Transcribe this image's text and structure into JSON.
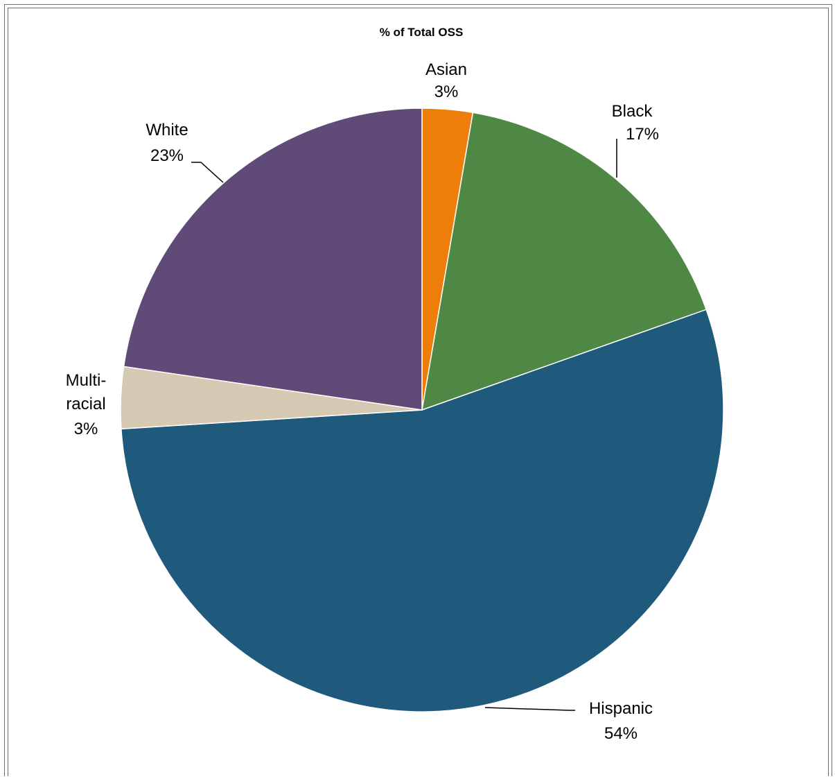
{
  "chart_data": {
    "type": "pie",
    "title": "% of Total OSS",
    "slices": [
      {
        "name": "Asian",
        "pct_label": "3%",
        "value": 2.7,
        "color": "#ef7d0a"
      },
      {
        "name": "Black",
        "pct_label": "17%",
        "value": 16.9,
        "color": "#4f8744"
      },
      {
        "name": "Hispanic",
        "pct_label": "54%",
        "value": 54.4,
        "color": "#1f5a7c"
      },
      {
        "name": "Multi-racial",
        "label_lines": [
          "Multi-",
          "racial"
        ],
        "pct_label": "3%",
        "value": 3.3,
        "color": "#d5c9b3"
      },
      {
        "name": "White",
        "pct_label": "23%",
        "value": 22.7,
        "color": "#604a78"
      }
    ],
    "start_angle": "12 o'clock, clockwise",
    "legend": "none (labels on chart)"
  }
}
